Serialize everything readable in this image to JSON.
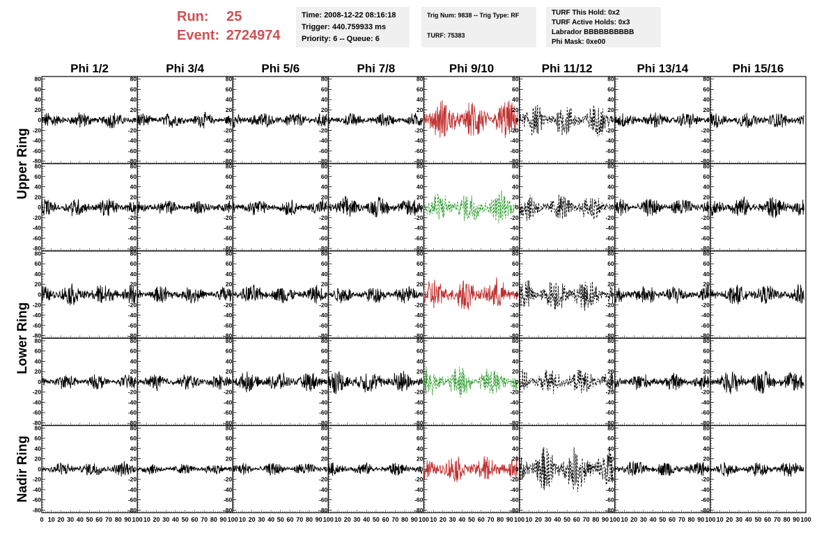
{
  "header": {
    "run_label": "Run:",
    "run_value": "25",
    "event_label": "Event:",
    "event_value": "2724974",
    "time": "Time: 2008-12-22 08:16:18",
    "trigger": "Trigger: 440.759933 ms",
    "priority_queue": "Priority: 6 -- Queue: 6",
    "trig_num_type": "Trig Num: 9838 -- Trig Type: RF",
    "turf": "TURF: 75383",
    "turf_this_hold": "TURF This Hold: 0x2",
    "turf_active_holds": "TURF Active Holds: 0x3",
    "labrador": "Labrador BBBBBBBBBB",
    "phi_mask": "Phi Mask: 0xe00"
  },
  "colors": {
    "run_event": "#d05050",
    "trace_default": "#000000",
    "trace_triggered_red": "#c03030",
    "trace_triggered_green": "#2a9a2a"
  },
  "chart_data": {
    "type": "line",
    "title": "",
    "columns": [
      "Phi 1/2",
      "Phi 3/4",
      "Phi 5/6",
      "Phi 7/8",
      "Phi 9/10",
      "Phi 11/12",
      "Phi 13/14",
      "Phi 15/16"
    ],
    "ring_labels": [
      {
        "name": "Upper Ring",
        "rows": [
          0,
          1
        ]
      },
      {
        "name": "Lower Ring",
        "rows": [
          2,
          3
        ]
      },
      {
        "name": "Nadir Ring",
        "rows": [
          4
        ]
      }
    ],
    "xlim": [
      0,
      100
    ],
    "ylim": [
      -85,
      85
    ],
    "x_ticks": [
      0,
      10,
      20,
      30,
      40,
      50,
      60,
      70,
      80,
      90,
      100
    ],
    "y_ticks": [
      -80,
      -60,
      -40,
      -20,
      0,
      20,
      40,
      60,
      80
    ],
    "grid": false,
    "panel_styles": [
      [
        "black",
        "black",
        "black",
        "black",
        "red",
        "black-dashed",
        "black",
        "black"
      ],
      [
        "black",
        "black",
        "black",
        "black",
        "green-dashed",
        "black-dashed",
        "black",
        "black"
      ],
      [
        "black",
        "black",
        "black",
        "black",
        "red",
        "black-dashed",
        "black",
        "black"
      ],
      [
        "black",
        "black",
        "black",
        "black",
        "green-dashed",
        "black-dashed",
        "black",
        "black"
      ],
      [
        "black",
        "black",
        "black",
        "black",
        "red",
        "black-dashed",
        "black",
        "black"
      ]
    ],
    "panel_amplitudes": [
      [
        15,
        14,
        15,
        13,
        38,
        30,
        15,
        15
      ],
      [
        17,
        14,
        15,
        20,
        30,
        25,
        17,
        20
      ],
      [
        20,
        16,
        18,
        16,
        30,
        30,
        18,
        18
      ],
      [
        14,
        15,
        18,
        22,
        28,
        24,
        16,
        22
      ],
      [
        14,
        10,
        12,
        12,
        25,
        40,
        15,
        14
      ]
    ]
  }
}
